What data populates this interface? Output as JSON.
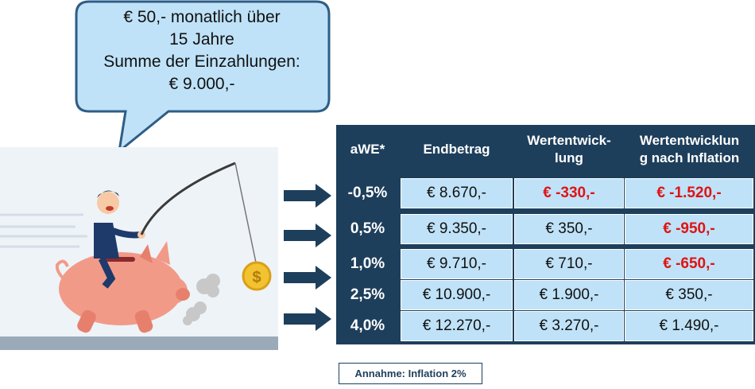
{
  "bubble": {
    "lines": [
      "€ 50,- monatlich über",
      "15 Jahre",
      "Summe der Einzahlungen:",
      "€ 9.000,-"
    ]
  },
  "table": {
    "headers": [
      "aWE*",
      "Endbetrag",
      "Wertentwick-lung",
      "Wertentwicklung nach Inflation"
    ],
    "header_lines": {
      "h0": [
        "aWE*"
      ],
      "h1": [
        "Endbetrag"
      ],
      "h2": [
        "Wertentwick-",
        "lung"
      ],
      "h3": [
        "Wertentwicklun",
        "g nach Inflation"
      ]
    },
    "rows": [
      {
        "awe": "-0,5%",
        "endbetrag": "€ 8.670,-",
        "wertentwicklung": "€ -330,-",
        "nach_inflation": "€ -1.520,-",
        "wert_negative": true,
        "infl_negative": true
      },
      {
        "awe": "0,5%",
        "endbetrag": "€ 9.350,-",
        "wertentwicklung": "€ 350,-",
        "nach_inflation": "€ -950,-",
        "wert_negative": false,
        "infl_negative": true
      },
      {
        "awe": "1,0%",
        "endbetrag": "€ 9.710,-",
        "wertentwicklung": "€ 710,-",
        "nach_inflation": "€ -650,-",
        "wert_negative": false,
        "infl_negative": true
      },
      {
        "awe": "2,5%",
        "endbetrag": "€ 10.900,-",
        "wertentwicklung": "€ 1.900,-",
        "nach_inflation": "€ 350,-",
        "wert_negative": false,
        "infl_negative": false
      },
      {
        "awe": "4,0%",
        "endbetrag": "€ 12.270,-",
        "wertentwicklung": "€ 3.270,-",
        "nach_inflation": "€ 1.490,-",
        "wert_negative": false,
        "infl_negative": false
      }
    ]
  },
  "note": "Annahme:  Inflation 2%",
  "colors": {
    "table_dark": "#1e3f5c",
    "cell_light": "#bfe2f8",
    "negative": "#e01313",
    "bubble_fill": "#bfe2f8",
    "bubble_stroke": "#2e5d86",
    "piggy": "#f29a88",
    "coin": "#f2c230"
  },
  "icons": [
    "speech-bubble",
    "piggy-bank",
    "businessman",
    "fishing-rod",
    "dollar-coin",
    "dust-cloud",
    "arrow-right"
  ]
}
